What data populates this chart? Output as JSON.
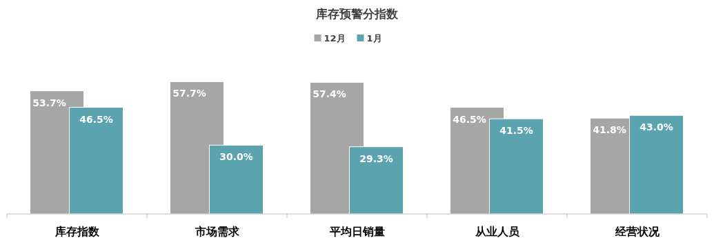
{
  "chart_data": {
    "type": "bar",
    "title": "库存预警分指数",
    "categories": [
      "库存指数",
      "市场需求",
      "平均日销量",
      "从业人员",
      "经营状况"
    ],
    "series": [
      {
        "name": "12月",
        "color": "#a6a6a6",
        "values": [
          53.7,
          57.7,
          57.4,
          46.5,
          41.8
        ],
        "value_labels": [
          "53.7%",
          "57.7%",
          "57.4%",
          "46.5%",
          "41.8%"
        ]
      },
      {
        "name": "1月",
        "color": "#5ba3ae",
        "values": [
          46.5,
          30.0,
          29.3,
          41.5,
          43.0
        ],
        "value_labels": [
          "46.5%",
          "30.0%",
          "29.3%",
          "41.5%",
          "43.0%"
        ]
      }
    ],
    "legend": "top",
    "grid": false
  }
}
